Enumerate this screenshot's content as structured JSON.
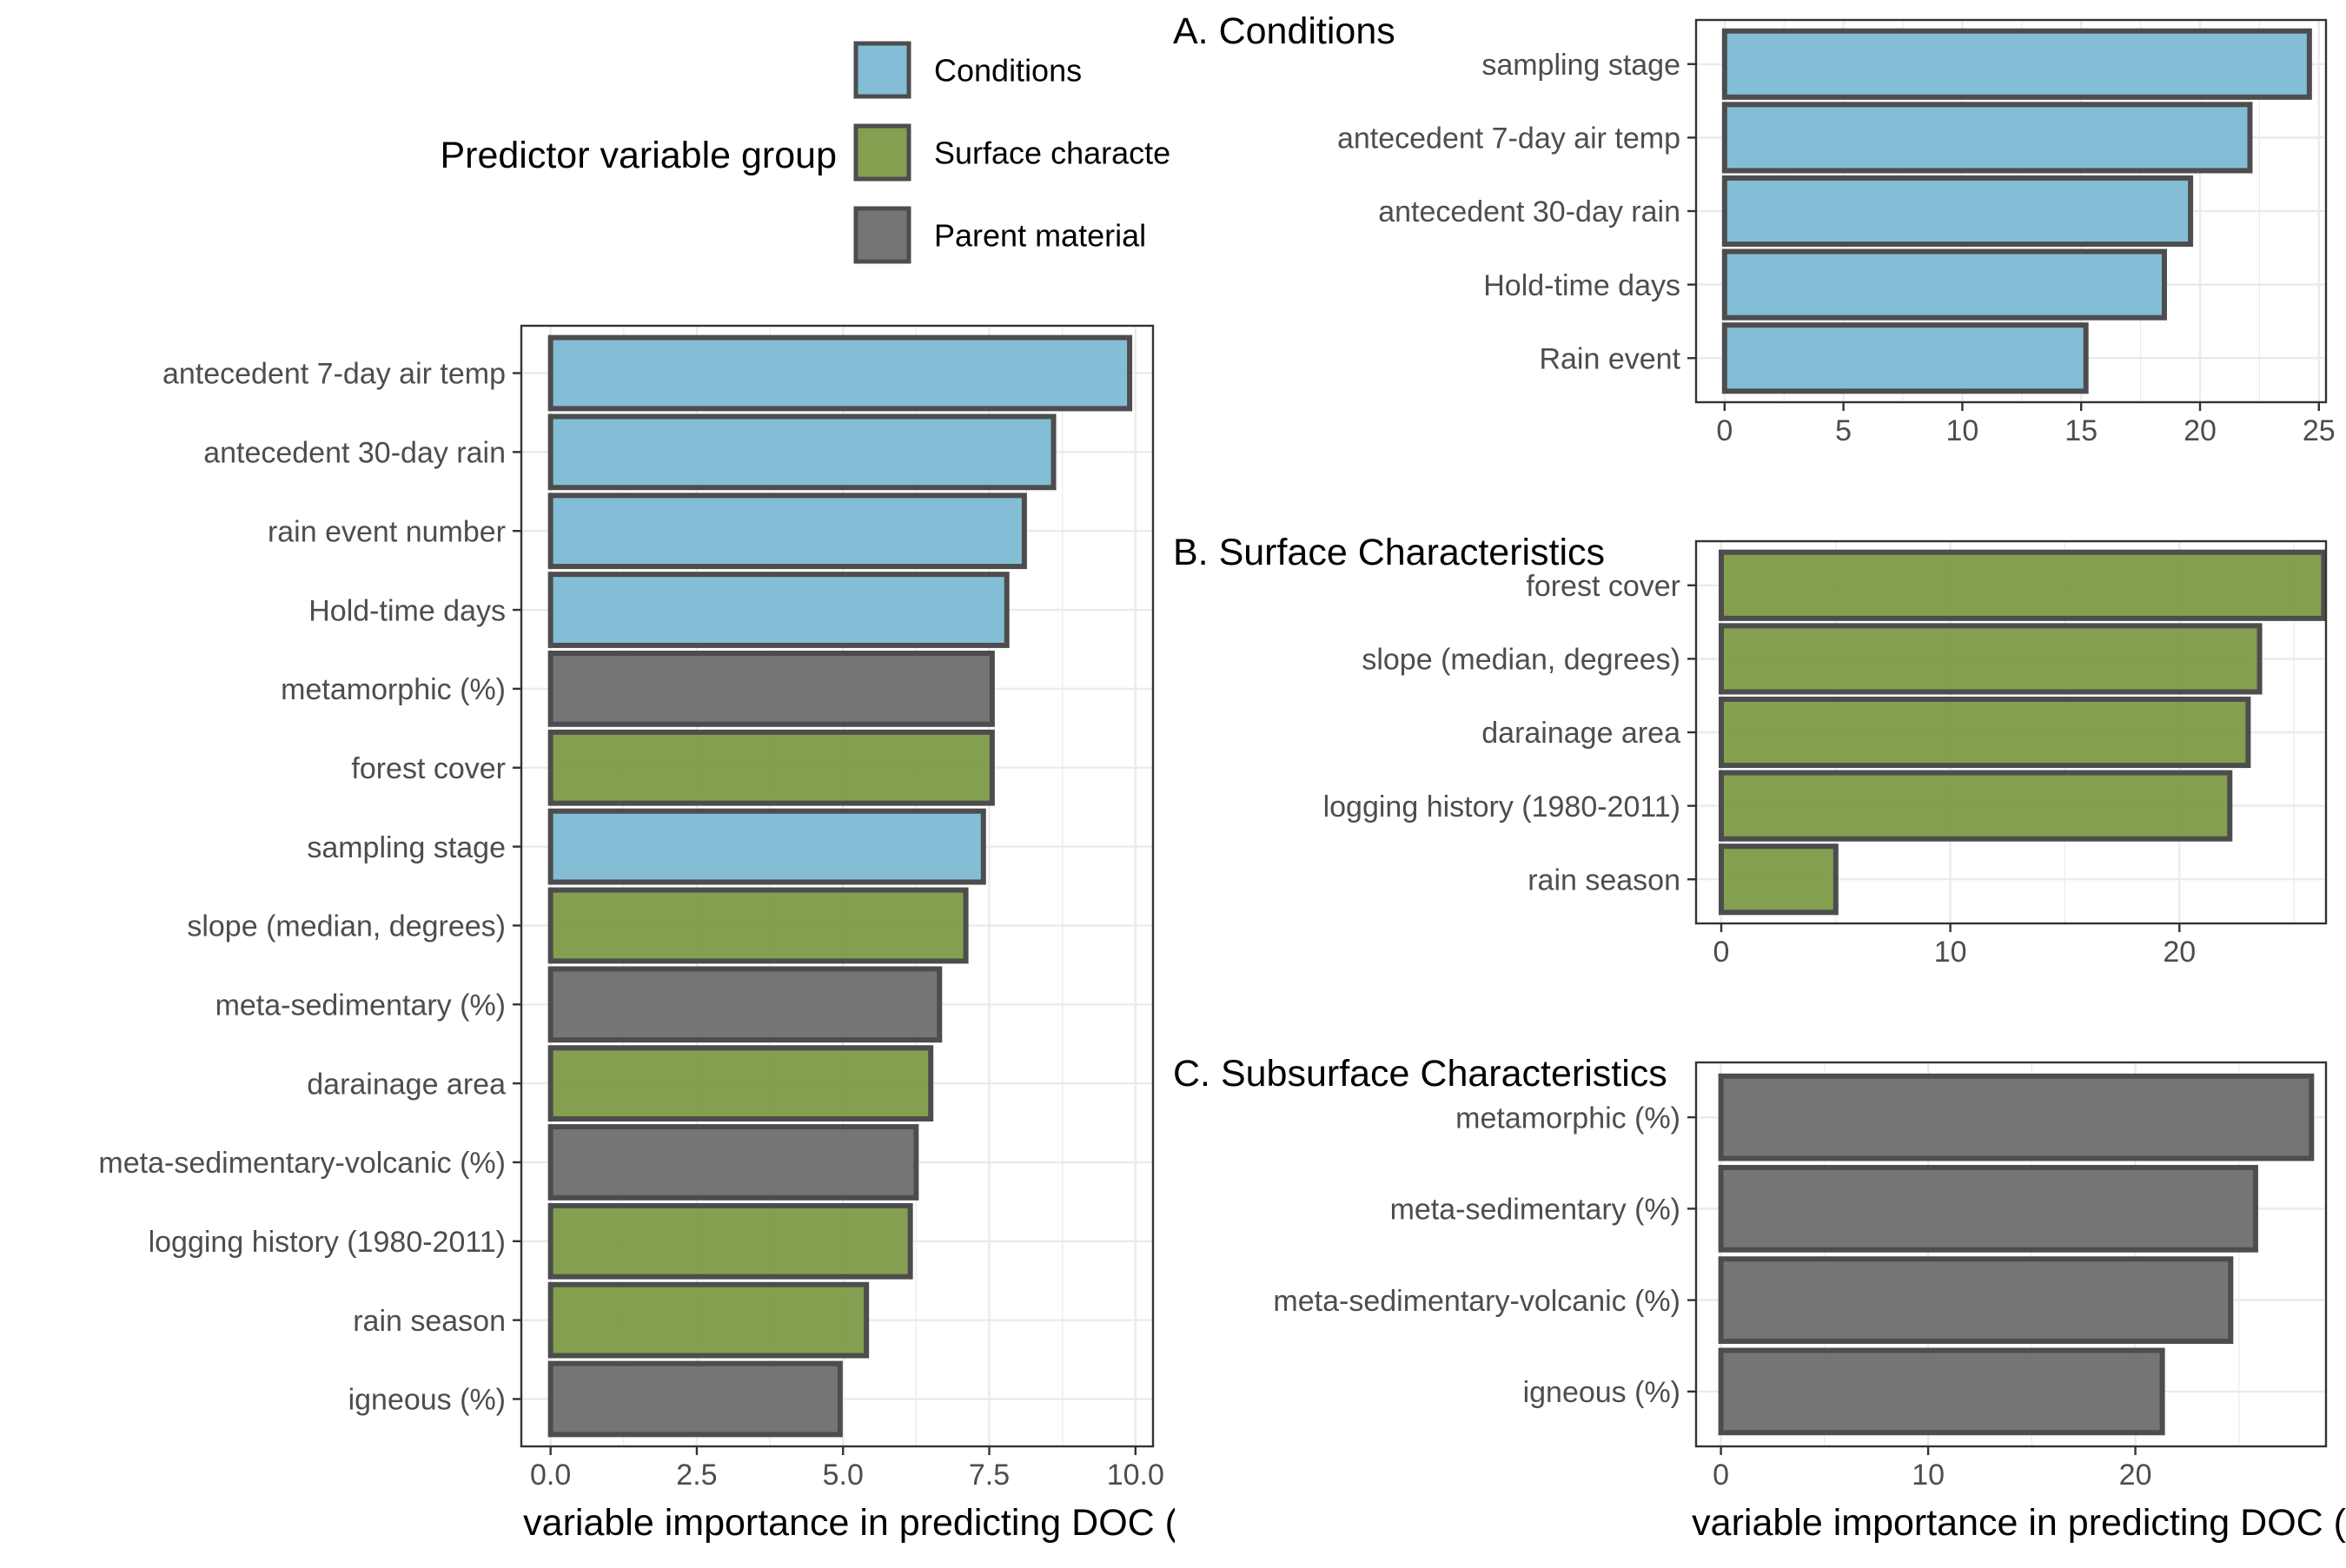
{
  "legend": {
    "title": "Predictor variable group",
    "entries": [
      {
        "label": "Conditions",
        "color": "#7DBAD4"
      },
      {
        "label": "Surface characte",
        "color": "#7E9A48"
      },
      {
        "label": "Parent material",
        "color": "#6E6E6E"
      }
    ]
  },
  "colors": {
    "conditions": "#7DBAD4",
    "surface": "#7E9A48",
    "parent": "#6E6E6E",
    "outline": "#4D4D4D"
  },
  "chart_data": [
    {
      "type": "bar",
      "orientation": "horizontal",
      "title": "",
      "xlabel": "variable importance in predicting DOC (",
      "xlim": [
        -0.5,
        10.3
      ],
      "xticks": [
        0.0,
        2.5,
        5.0,
        7.5,
        10.0
      ],
      "xtick_labels": [
        "0.0",
        "2.5",
        "5.0",
        "7.5",
        "10.0"
      ],
      "grid": true,
      "categories": [
        "antecedent 7-day air temp",
        "antecedent 30-day rain",
        "rain event number",
        "Hold-time days",
        "metamorphic (%)",
        "forest cover",
        "sampling stage",
        "slope (median, degrees)",
        "meta-sedimentary (%)",
        "darainage area",
        "meta-sedimentary-volcanic (%)",
        "logging history (1980-2011)",
        "rain season",
        "igneous (%)"
      ],
      "values": [
        9.9,
        8.6,
        8.1,
        7.8,
        7.55,
        7.55,
        7.4,
        7.1,
        6.65,
        6.5,
        6.25,
        6.15,
        5.4,
        4.95
      ],
      "groups": [
        "conditions",
        "conditions",
        "conditions",
        "conditions",
        "parent",
        "surface",
        "conditions",
        "surface",
        "parent",
        "surface",
        "parent",
        "surface",
        "surface",
        "parent"
      ]
    },
    {
      "type": "bar",
      "orientation": "horizontal",
      "title": "A. Conditions",
      "xlabel": "",
      "xlim": [
        -1.2,
        25.3
      ],
      "xticks": [
        0,
        5,
        10,
        15,
        20,
        25
      ],
      "xtick_labels": [
        "0",
        "5",
        "10",
        "15",
        "20",
        "25"
      ],
      "grid": true,
      "categories": [
        "sampling stage",
        "antecedent 7-day air temp",
        "antecedent 30-day rain",
        "Hold-time days",
        "Rain event"
      ],
      "values": [
        24.6,
        22.1,
        19.6,
        18.5,
        15.2
      ],
      "groups": [
        "conditions",
        "conditions",
        "conditions",
        "conditions",
        "conditions"
      ]
    },
    {
      "type": "bar",
      "orientation": "horizontal",
      "title": "B. Surface Characteristics",
      "xlabel": "",
      "xlim": [
        -1.1,
        26.4
      ],
      "xticks": [
        0,
        10,
        20
      ],
      "xtick_labels": [
        "0",
        "10",
        "20"
      ],
      "grid": true,
      "categories": [
        "forest cover",
        "slope (median, degrees)",
        "darainage area",
        "logging history (1980-2011)",
        "rain season"
      ],
      "values": [
        26.3,
        23.5,
        23.0,
        22.2,
        5.0
      ],
      "groups": [
        "surface",
        "surface",
        "surface",
        "surface",
        "surface"
      ]
    },
    {
      "type": "bar",
      "orientation": "horizontal",
      "title": "C. Subsurface Characteristics",
      "xlabel": "variable importance in predicting DOC (",
      "xlim": [
        -1.2,
        29.2
      ],
      "xticks": [
        0,
        10,
        20
      ],
      "xtick_labels": [
        "0",
        "10",
        "20"
      ],
      "grid": true,
      "categories": [
        "metamorphic (%)",
        "meta-sedimentary (%)",
        "meta-sedimentary-volcanic (%)",
        "igneous (%)"
      ],
      "values": [
        28.5,
        25.8,
        24.6,
        21.3
      ],
      "groups": [
        "parent",
        "parent",
        "parent",
        "parent"
      ]
    }
  ]
}
